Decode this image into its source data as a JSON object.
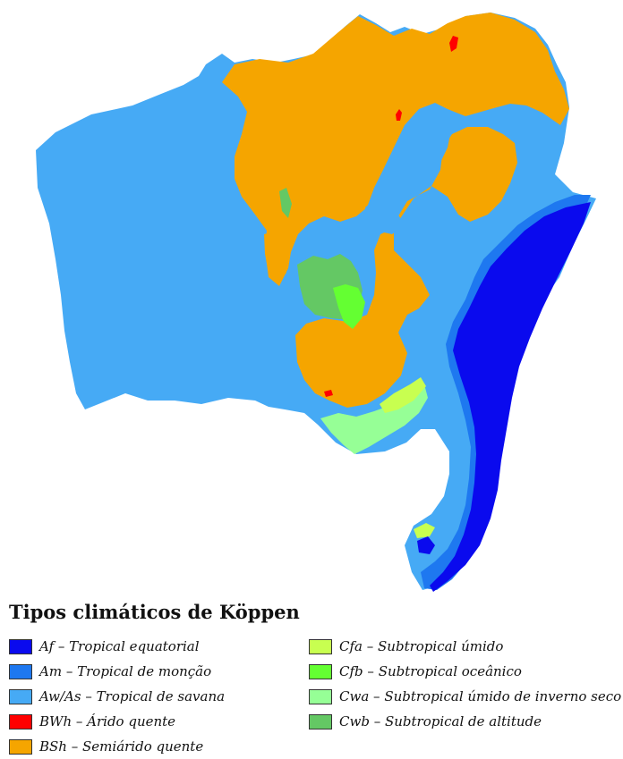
{
  "legend": {
    "title": "Tipos climáticos de Köppen",
    "left_items": [
      {
        "code": "Af",
        "desc": "Tropical equatorial",
        "color": "#0a0aee"
      },
      {
        "code": "Am",
        "desc": "Tropical de monção",
        "color": "#1e78f0"
      },
      {
        "code": "Aw/As",
        "desc": "Tropical de savana",
        "color": "#46aaf5"
      },
      {
        "code": "BWh",
        "desc": "Árido quente",
        "color": "#ff0000"
      },
      {
        "code": "BSh",
        "desc": "Semiárido quente",
        "color": "#f5a500"
      }
    ],
    "right_items": [
      {
        "code": "Cfa",
        "desc": "Subtropical úmido",
        "color": "#c8ff50"
      },
      {
        "code": "Cfb",
        "desc": "Subtropical oceânico",
        "color": "#64ff32"
      },
      {
        "code": "Cwa",
        "desc": "Subtropical úmido de inverno seco",
        "color": "#96ff96"
      },
      {
        "code": "Cwb",
        "desc": "Subtropical de altitude",
        "color": "#64c864"
      }
    ],
    "separator": " – "
  }
}
